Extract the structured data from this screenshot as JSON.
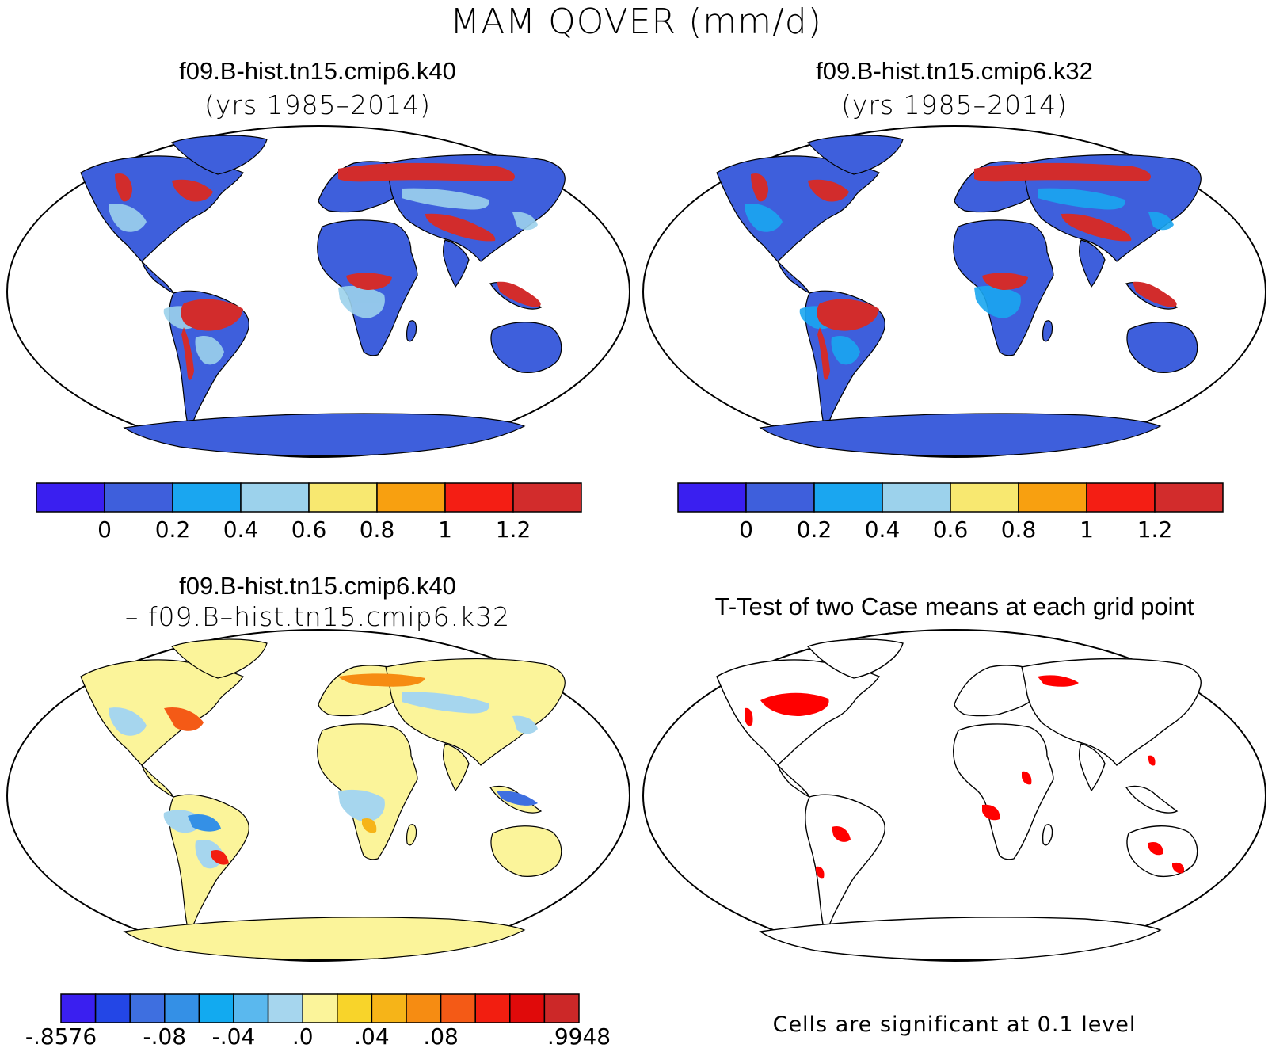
{
  "main_title": "MAM QOVER (mm/d)",
  "panels": [
    {
      "title": "f09.B-hist.tn15.cmip6.k40",
      "subtitle": "(yrs 1985–2014)"
    },
    {
      "title": "f09.B-hist.tn15.cmip6.k32",
      "subtitle": "(yrs 1985–2014)"
    },
    {
      "title": "f09.B-hist.tn15.cmip6.k40",
      "subtitle": "– f09.B–hist.tn15.cmip6.k32"
    },
    {
      "title": "T-Test of two Case means at each grid point",
      "subtitle": ""
    }
  ],
  "colorbar_abs": {
    "colors": [
      "#3a1ff0",
      "#3e5fdc",
      "#1aa6f0",
      "#9cd2ec",
      "#f8e870",
      "#f8a010",
      "#f41e14",
      "#d22c2c"
    ],
    "labels": [
      "0",
      "0.2",
      "0.4",
      "0.6",
      "0.8",
      "1",
      "1.2"
    ]
  },
  "colorbar_diff": {
    "colors": [
      "#3a1ff0",
      "#2346e6",
      "#3e6fe0",
      "#3490e6",
      "#12aaf0",
      "#5ab8ee",
      "#a6d6ee",
      "#fbf49a",
      "#f8d42a",
      "#f6b418",
      "#f68c12",
      "#f45a16",
      "#f21e10",
      "#e00a0a",
      "#cc2828"
    ],
    "labels": [
      "-.8576",
      "-.08",
      "-.04",
      ".0",
      ".04",
      ".08",
      ".9948"
    ]
  },
  "significance_note": "Cells are significant at 0.1 level",
  "colors": {
    "land_low": "#3e5fdc",
    "land_mid": "#1aa6f0",
    "land_high": "#d22c2c",
    "diff_neutral": "#fbf49a",
    "significant": "#ff0000"
  }
}
